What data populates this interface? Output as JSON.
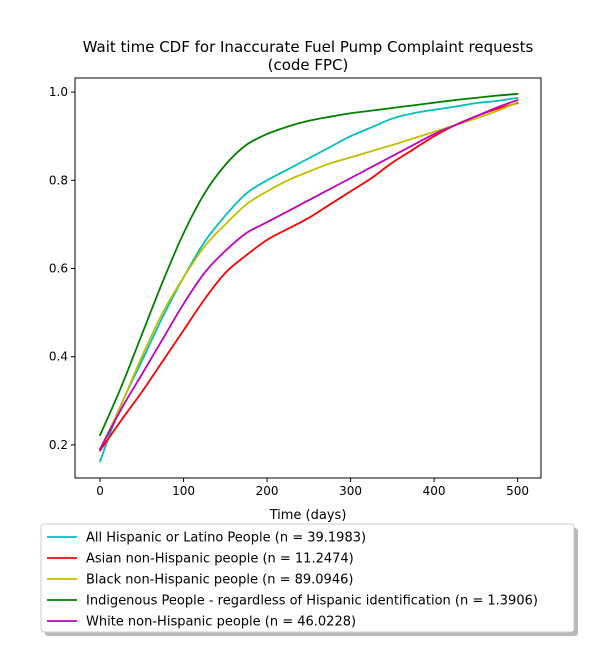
{
  "chart_data": {
    "type": "line",
    "title_line1": "Wait time CDF for Inaccurate Fuel Pump Complaint  requests",
    "title_line2": "(code FPC)",
    "xlabel": "Time (days)",
    "ylabel": "",
    "xlim": [
      -30,
      528
    ],
    "ylim": [
      0.125,
      1.032
    ],
    "x_ticks": [
      0,
      100,
      200,
      300,
      400,
      500
    ],
    "y_ticks": [
      0.2,
      0.4,
      0.6,
      0.8,
      1.0
    ],
    "x_tick_labels": [
      "0",
      "100",
      "200",
      "300",
      "400",
      "500"
    ],
    "y_tick_labels": [
      "0.2",
      "0.4",
      "0.6",
      "0.8",
      "1.0"
    ],
    "grid": false,
    "legend_position": "bottom-center",
    "x": [
      0,
      25,
      50,
      75,
      100,
      125,
      150,
      175,
      200,
      225,
      250,
      275,
      300,
      325,
      350,
      375,
      400,
      425,
      450,
      475,
      500
    ],
    "series": [
      {
        "name": "All Hispanic or Latino People (n = 39.1983)",
        "color": "#00bfbf",
        "values": [
          0.163,
          0.29,
          0.39,
          0.49,
          0.58,
          0.66,
          0.72,
          0.77,
          0.8,
          0.825,
          0.85,
          0.875,
          0.9,
          0.92,
          0.94,
          0.952,
          0.96,
          0.967,
          0.975,
          0.98,
          0.987
        ]
      },
      {
        "name": "Asian non-Hispanic people (n = 11.2474)",
        "color": "#ff0000",
        "values": [
          0.187,
          0.255,
          0.32,
          0.39,
          0.46,
          0.53,
          0.59,
          0.63,
          0.665,
          0.69,
          0.715,
          0.745,
          0.775,
          0.805,
          0.84,
          0.87,
          0.9,
          0.925,
          0.945,
          0.962,
          0.975
        ]
      },
      {
        "name": "Black non-Hispanic people (n = 89.0946)",
        "color": "#bfbf00",
        "values": [
          0.19,
          0.29,
          0.4,
          0.5,
          0.58,
          0.65,
          0.7,
          0.745,
          0.775,
          0.8,
          0.82,
          0.838,
          0.852,
          0.866,
          0.88,
          0.895,
          0.91,
          0.925,
          0.94,
          0.957,
          0.977
        ]
      },
      {
        "name": "Indigenous People - regardless of Hispanic identification (n = 1.3906)",
        "color": "#008000",
        "values": [
          0.222,
          0.33,
          0.45,
          0.57,
          0.68,
          0.77,
          0.835,
          0.88,
          0.905,
          0.922,
          0.935,
          0.944,
          0.952,
          0.958,
          0.964,
          0.97,
          0.976,
          0.982,
          0.987,
          0.992,
          0.996
        ]
      },
      {
        "name": "White non-Hispanic people (n = 46.0228)",
        "color": "#bf00bf",
        "values": [
          0.19,
          0.28,
          0.36,
          0.44,
          0.52,
          0.59,
          0.64,
          0.68,
          0.705,
          0.73,
          0.755,
          0.78,
          0.805,
          0.83,
          0.855,
          0.88,
          0.905,
          0.925,
          0.945,
          0.965,
          0.982
        ]
      }
    ]
  }
}
